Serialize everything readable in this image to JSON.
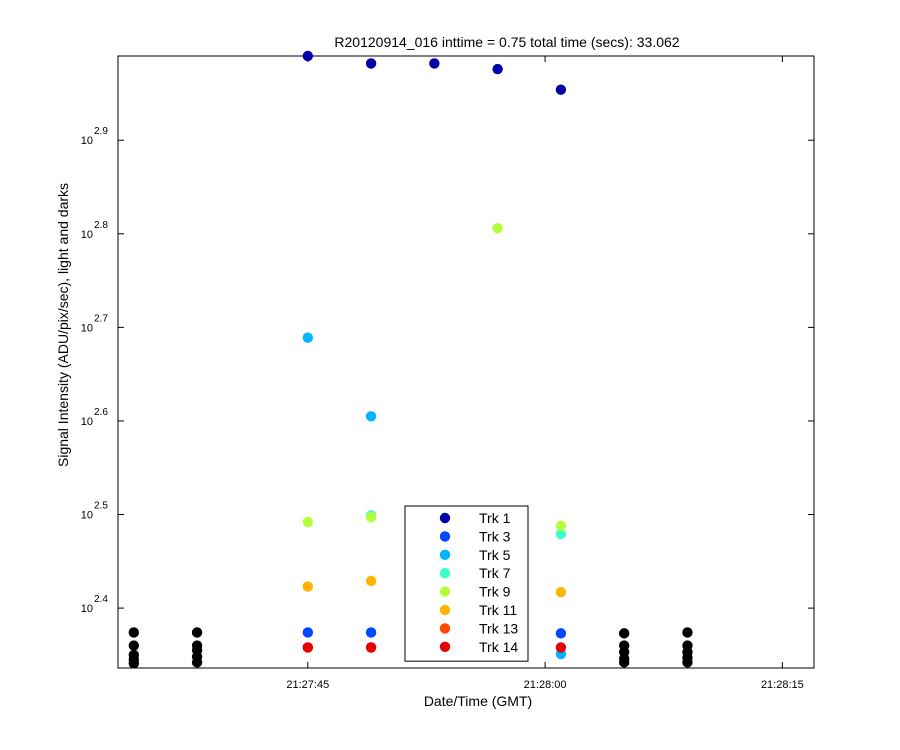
{
  "chart_data": {
    "type": "scatter",
    "title": "R20120914_016 inttime = 0.75 total time (secs): 33.062",
    "xlabel": "Date/Time (GMT)",
    "ylabel": "Signal Intensity (ADU/pix/sec), light and darks",
    "x_axis": {
      "start": "21:27:33",
      "end": "21:28:17",
      "ticks": [
        "21:27:45",
        "21:28:00",
        "21:28:15"
      ]
    },
    "y_axis": {
      "scale": "log10",
      "ylim_exponent": [
        2.336,
        2.99
      ],
      "tick_base": "10",
      "tick_exponents": [
        "2.4",
        "2.5",
        "2.6",
        "2.7",
        "2.8",
        "2.9"
      ]
    },
    "grid": false,
    "legend": {
      "placement": "bottom-center",
      "entries": [
        "Trk 1",
        "Trk 3",
        "Trk 5",
        "Trk 7",
        "Trk 9",
        "Trk 11",
        "Trk 13",
        "Trk 14"
      ]
    },
    "series": [
      {
        "name": "Trk 1",
        "color": "#0000a8",
        "points": [
          [
            "21:27:45",
            2.99
          ],
          [
            "21:27:49",
            2.982
          ],
          [
            "21:27:53",
            2.982
          ],
          [
            "21:27:57",
            2.976
          ],
          [
            "21:28:01",
            2.954
          ]
        ]
      },
      {
        "name": "Trk 3",
        "color": "#0048ff",
        "points": [
          [
            "21:27:45",
            2.374
          ],
          [
            "21:27:49",
            2.374
          ],
          [
            "21:27:53",
            2.374
          ],
          [
            "21:28:01",
            2.373
          ]
        ]
      },
      {
        "name": "Trk 5",
        "color": "#00b4ff",
        "points": [
          [
            "21:27:45",
            2.689
          ],
          [
            "21:27:49",
            2.605
          ],
          [
            "21:28:01",
            2.351
          ]
        ]
      },
      {
        "name": "Trk 7",
        "color": "#3cffc8",
        "points": [
          [
            "21:27:49",
            2.499
          ],
          [
            "21:27:53",
            2.48
          ],
          [
            "21:28:01",
            2.479
          ]
        ]
      },
      {
        "name": "Trk 9",
        "color": "#b4ff3c",
        "points": [
          [
            "21:27:45",
            2.492
          ],
          [
            "21:27:49",
            2.497
          ],
          [
            "21:27:53",
            2.487
          ],
          [
            "21:27:57",
            2.806
          ],
          [
            "21:28:01",
            2.488
          ]
        ]
      },
      {
        "name": "Trk 11",
        "color": "#ffb400",
        "points": [
          [
            "21:27:45",
            2.423
          ],
          [
            "21:27:49",
            2.429
          ],
          [
            "21:27:53",
            2.425
          ],
          [
            "21:28:01",
            2.417
          ]
        ]
      },
      {
        "name": "Trk 13",
        "color": "#ff4800",
        "points": [
          [
            "21:27:45",
            2.358
          ],
          [
            "21:27:49",
            2.358
          ],
          [
            "21:27:53",
            2.358
          ]
        ]
      },
      {
        "name": "Trk 14",
        "color": "#e80000",
        "points": [
          [
            "21:27:45",
            2.358
          ],
          [
            "21:27:49",
            2.358
          ],
          [
            "21:27:53",
            2.358
          ],
          [
            "21:28:01",
            2.358
          ]
        ]
      },
      {
        "color": "#000000",
        "points": [
          [
            "21:27:34",
            2.374
          ],
          [
            "21:27:34",
            2.36
          ],
          [
            "21:27:34",
            2.35
          ],
          [
            "21:27:34",
            2.345
          ],
          [
            "21:27:34",
            2.341
          ],
          [
            "21:27:38",
            2.374
          ],
          [
            "21:27:38",
            2.36
          ],
          [
            "21:27:38",
            2.355
          ],
          [
            "21:27:38",
            2.348
          ],
          [
            "21:27:38",
            2.342
          ],
          [
            "21:28:05",
            2.373
          ],
          [
            "21:28:05",
            2.36
          ],
          [
            "21:28:05",
            2.353
          ],
          [
            "21:28:05",
            2.346
          ],
          [
            "21:28:05",
            2.342
          ],
          [
            "21:28:09",
            2.374
          ],
          [
            "21:28:09",
            2.36
          ],
          [
            "21:28:09",
            2.353
          ],
          [
            "21:28:09",
            2.347
          ],
          [
            "21:28:09",
            2.342
          ]
        ]
      }
    ]
  }
}
